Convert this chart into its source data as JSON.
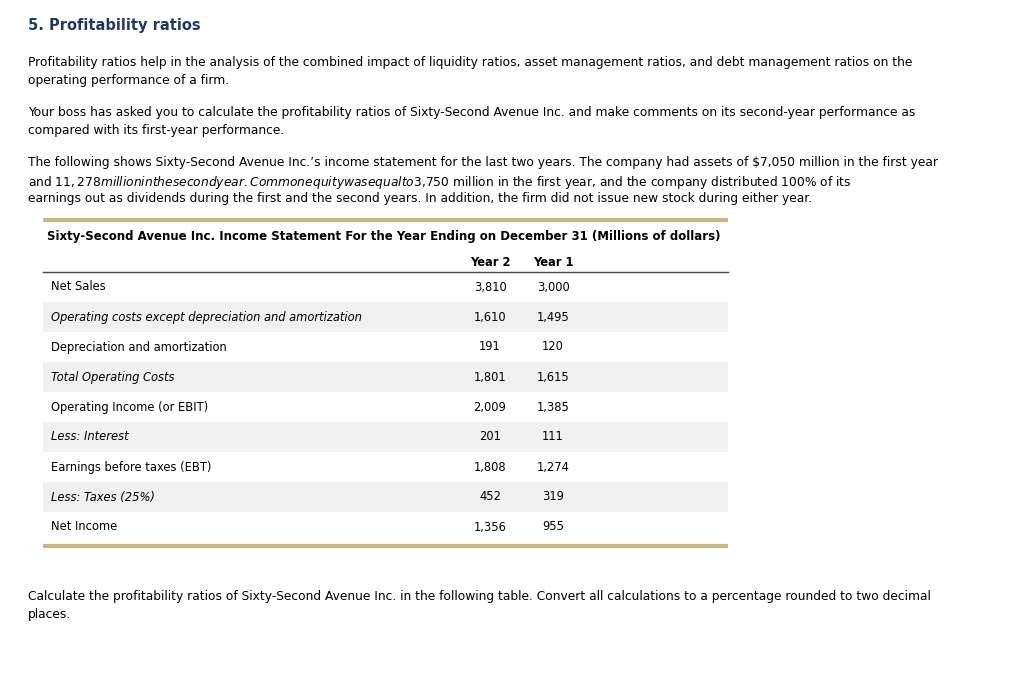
{
  "title": "5. Profitability ratios",
  "title_color": "#1f3864",
  "para1_line1": "Profitability ratios help in the analysis of the combined impact of liquidity ratios, asset management ratios, and debt management ratios on the",
  "para1_line2": "operating performance of a firm.",
  "para2_line1": "Your boss has asked you to calculate the profitability ratios of Sixty-Second Avenue Inc. and make comments on its second-year performance as",
  "para2_line2": "compared with its first-year performance.",
  "para3_line1": "The following shows Sixty-Second Avenue Inc.’s income statement for the last two years. The company had assets of $7,050 million in the first year",
  "para3_line2": "and $11,278 million in the second year. Common equity was equal to $3,750 million in the first year, and the company distributed 100% of its",
  "para3_line3": "earnings out as dividends during the first and the second years. In addition, the firm did not issue new stock during either year.",
  "table_title": "Sixty-Second Avenue Inc. Income Statement For the Year Ending on December 31 (Millions of dollars)",
  "rows": [
    [
      "Net Sales",
      "3,810",
      "3,000"
    ],
    [
      "Operating costs except depreciation and amortization",
      "1,610",
      "1,495"
    ],
    [
      "Depreciation and amortization",
      "191",
      "120"
    ],
    [
      "Total Operating Costs",
      "1,801",
      "1,615"
    ],
    [
      "Operating Income (or EBIT)",
      "2,009",
      "1,385"
    ],
    [
      "Less: Interest",
      "201",
      "111"
    ],
    [
      "Earnings before taxes (EBT)",
      "1,808",
      "1,274"
    ],
    [
      "Less: Taxes (25%)",
      "452",
      "319"
    ],
    [
      "Net Income",
      "1,356",
      "955"
    ]
  ],
  "italic_rows": [
    1,
    3,
    5,
    7
  ],
  "shaded_rows": [
    1,
    3,
    5,
    7
  ],
  "footer_line1": "Calculate the profitability ratios of Sixty-Second Avenue Inc. in the following table. Convert all calculations to a percentage rounded to two decimal",
  "footer_line2": "places.",
  "bg_color": "#ffffff",
  "text_color": "#000000",
  "table_border_color": "#c8b882",
  "shaded_row_color": "#f0f0f0",
  "font_size_title": 10.5,
  "font_size_body": 8.8,
  "font_size_table": 8.3
}
